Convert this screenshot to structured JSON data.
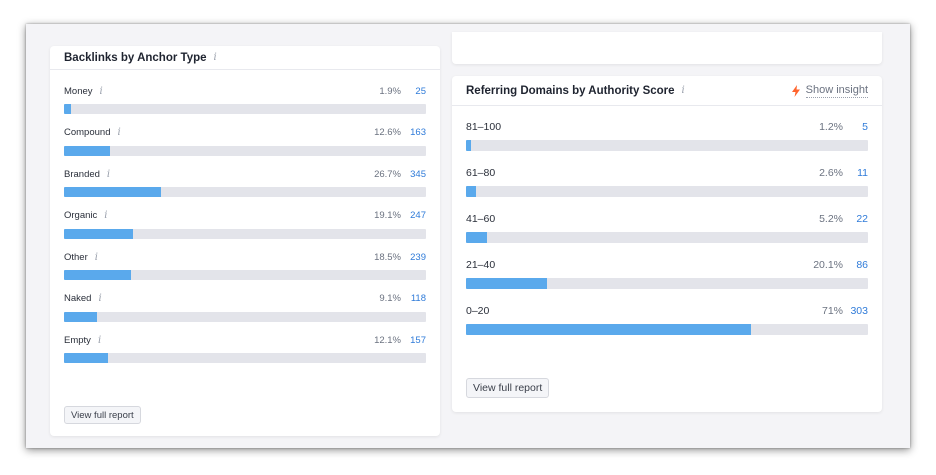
{
  "anchor_card": {
    "title": "Backlinks by Anchor Type",
    "info": "i",
    "button": "View full report",
    "rows": [
      {
        "label": "Money",
        "pct": "1.9%",
        "count": "25",
        "fill": 1.9
      },
      {
        "label": "Compound",
        "pct": "12.6%",
        "count": "163",
        "fill": 12.6
      },
      {
        "label": "Branded",
        "pct": "26.7%",
        "count": "345",
        "fill": 26.7
      },
      {
        "label": "Organic",
        "pct": "19.1%",
        "count": "247",
        "fill": 19.1
      },
      {
        "label": "Other",
        "pct": "18.5%",
        "count": "239",
        "fill": 18.5
      },
      {
        "label": "Naked",
        "pct": "9.1%",
        "count": "118",
        "fill": 9.1
      },
      {
        "label": "Empty",
        "pct": "12.1%",
        "count": "157",
        "fill": 12.1
      }
    ]
  },
  "authority_card": {
    "title": "Referring Domains by Authority Score",
    "info": "i",
    "insight_label": "Show insight",
    "insight_icon": "lightning-bolt-icon",
    "insight_color": "#ff642d",
    "button": "View full report",
    "rows": [
      {
        "label": "81–100",
        "pct": "1.2%",
        "count": "5",
        "fill": 1.2
      },
      {
        "label": "61–80",
        "pct": "2.6%",
        "count": "11",
        "fill": 2.6
      },
      {
        "label": "41–60",
        "pct": "5.2%",
        "count": "22",
        "fill": 5.2
      },
      {
        "label": "21–40",
        "pct": "20.1%",
        "count": "86",
        "fill": 20.1
      },
      {
        "label": "0–20",
        "pct": "71%",
        "count": "303",
        "fill": 71
      }
    ]
  },
  "colors": {
    "bar_fill": "#5aa9ec",
    "bar_track": "#e3e4ea",
    "count_link": "#2f7bd9"
  }
}
